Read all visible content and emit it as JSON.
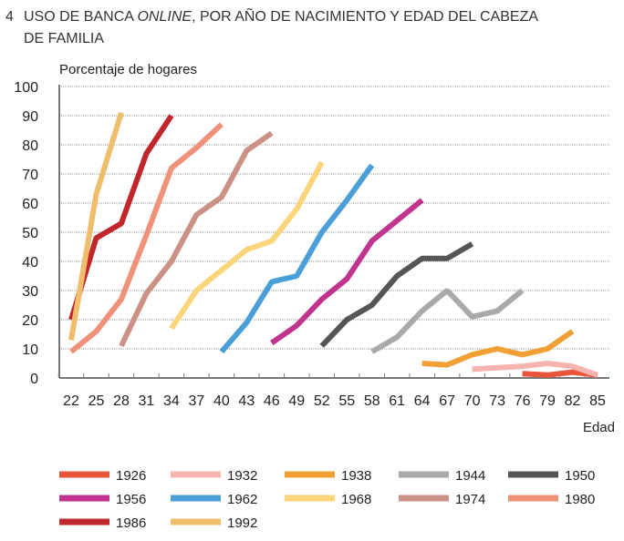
{
  "chart_data": {
    "type": "line",
    "title_number": "4",
    "title_part1": "USO DE BANCA ",
    "title_italic": "ONLINE",
    "title_part2": ", POR AÑO DE NACIMIENTO Y EDAD DEL CABEZA",
    "title_line2": "DE FAMILIA",
    "ylabel": "Porcentaje de hogares",
    "xlabel": "Edad",
    "ylim": [
      0,
      100
    ],
    "yticks": [
      "0",
      "10",
      "20",
      "30",
      "40",
      "50",
      "60",
      "70",
      "80",
      "90",
      "100"
    ],
    "xticks": [
      "22",
      "25",
      "28",
      "31",
      "34",
      "37",
      "40",
      "43",
      "46",
      "49",
      "52",
      "55",
      "58",
      "61",
      "64",
      "67",
      "70",
      "73",
      "76",
      "79",
      "82",
      "85"
    ],
    "grid": true,
    "legend_position": "bottom",
    "series": [
      {
        "name": "1926",
        "color": "#e8553a",
        "x": [
          76,
          79,
          82,
          85
        ],
        "y": [
          1.5,
          1,
          2,
          1
        ]
      },
      {
        "name": "1932",
        "color": "#f7b3ad",
        "x": [
          70,
          73,
          76,
          79,
          82,
          85
        ],
        "y": [
          3,
          3.5,
          4,
          5,
          4,
          1
        ]
      },
      {
        "name": "1938",
        "color": "#f0a035",
        "x": [
          64,
          67,
          70,
          73,
          76,
          79,
          82
        ],
        "y": [
          5,
          4.5,
          8,
          10,
          8,
          10,
          16
        ]
      },
      {
        "name": "1944",
        "color": "#a8aaaa",
        "x": [
          58,
          61,
          64,
          67,
          70,
          73,
          76
        ],
        "y": [
          9,
          14,
          23,
          30,
          21,
          23,
          30
        ]
      },
      {
        "name": "1950",
        "color": "#555555",
        "x": [
          52,
          55,
          58,
          61,
          64,
          67,
          70
        ],
        "y": [
          11,
          20,
          25,
          35,
          41,
          41,
          46
        ]
      },
      {
        "name": "1956",
        "color": "#c0348f",
        "x": [
          46,
          49,
          52,
          55,
          58,
          61,
          64
        ],
        "y": [
          12,
          18,
          27,
          34,
          47,
          54,
          61
        ]
      },
      {
        "name": "1962",
        "color": "#4a9fd8",
        "x": [
          40,
          43,
          46,
          49,
          52,
          55,
          58
        ],
        "y": [
          9,
          19,
          33,
          35,
          50,
          61,
          73
        ]
      },
      {
        "name": "1968",
        "color": "#fad57a",
        "x": [
          34,
          37,
          40,
          43,
          46,
          49,
          52
        ],
        "y": [
          17,
          30,
          37,
          44,
          47,
          58,
          74
        ]
      },
      {
        "name": "1974",
        "color": "#cc9186",
        "x": [
          28,
          31,
          34,
          37,
          40,
          43,
          46
        ],
        "y": [
          11,
          29,
          40,
          56,
          62,
          78,
          84
        ]
      },
      {
        "name": "1980",
        "color": "#f0917a",
        "x": [
          22,
          25,
          28,
          31,
          34,
          37,
          40
        ],
        "y": [
          9,
          16,
          27,
          49,
          72,
          79,
          87
        ]
      },
      {
        "name": "1986",
        "color": "#c0262b",
        "x": [
          22,
          25,
          28,
          31,
          34
        ],
        "y": [
          20,
          48,
          53,
          77,
          90
        ]
      },
      {
        "name": "1992",
        "color": "#f0bd6d",
        "x": [
          22,
          25,
          28
        ],
        "y": [
          13,
          63,
          91
        ]
      }
    ]
  }
}
